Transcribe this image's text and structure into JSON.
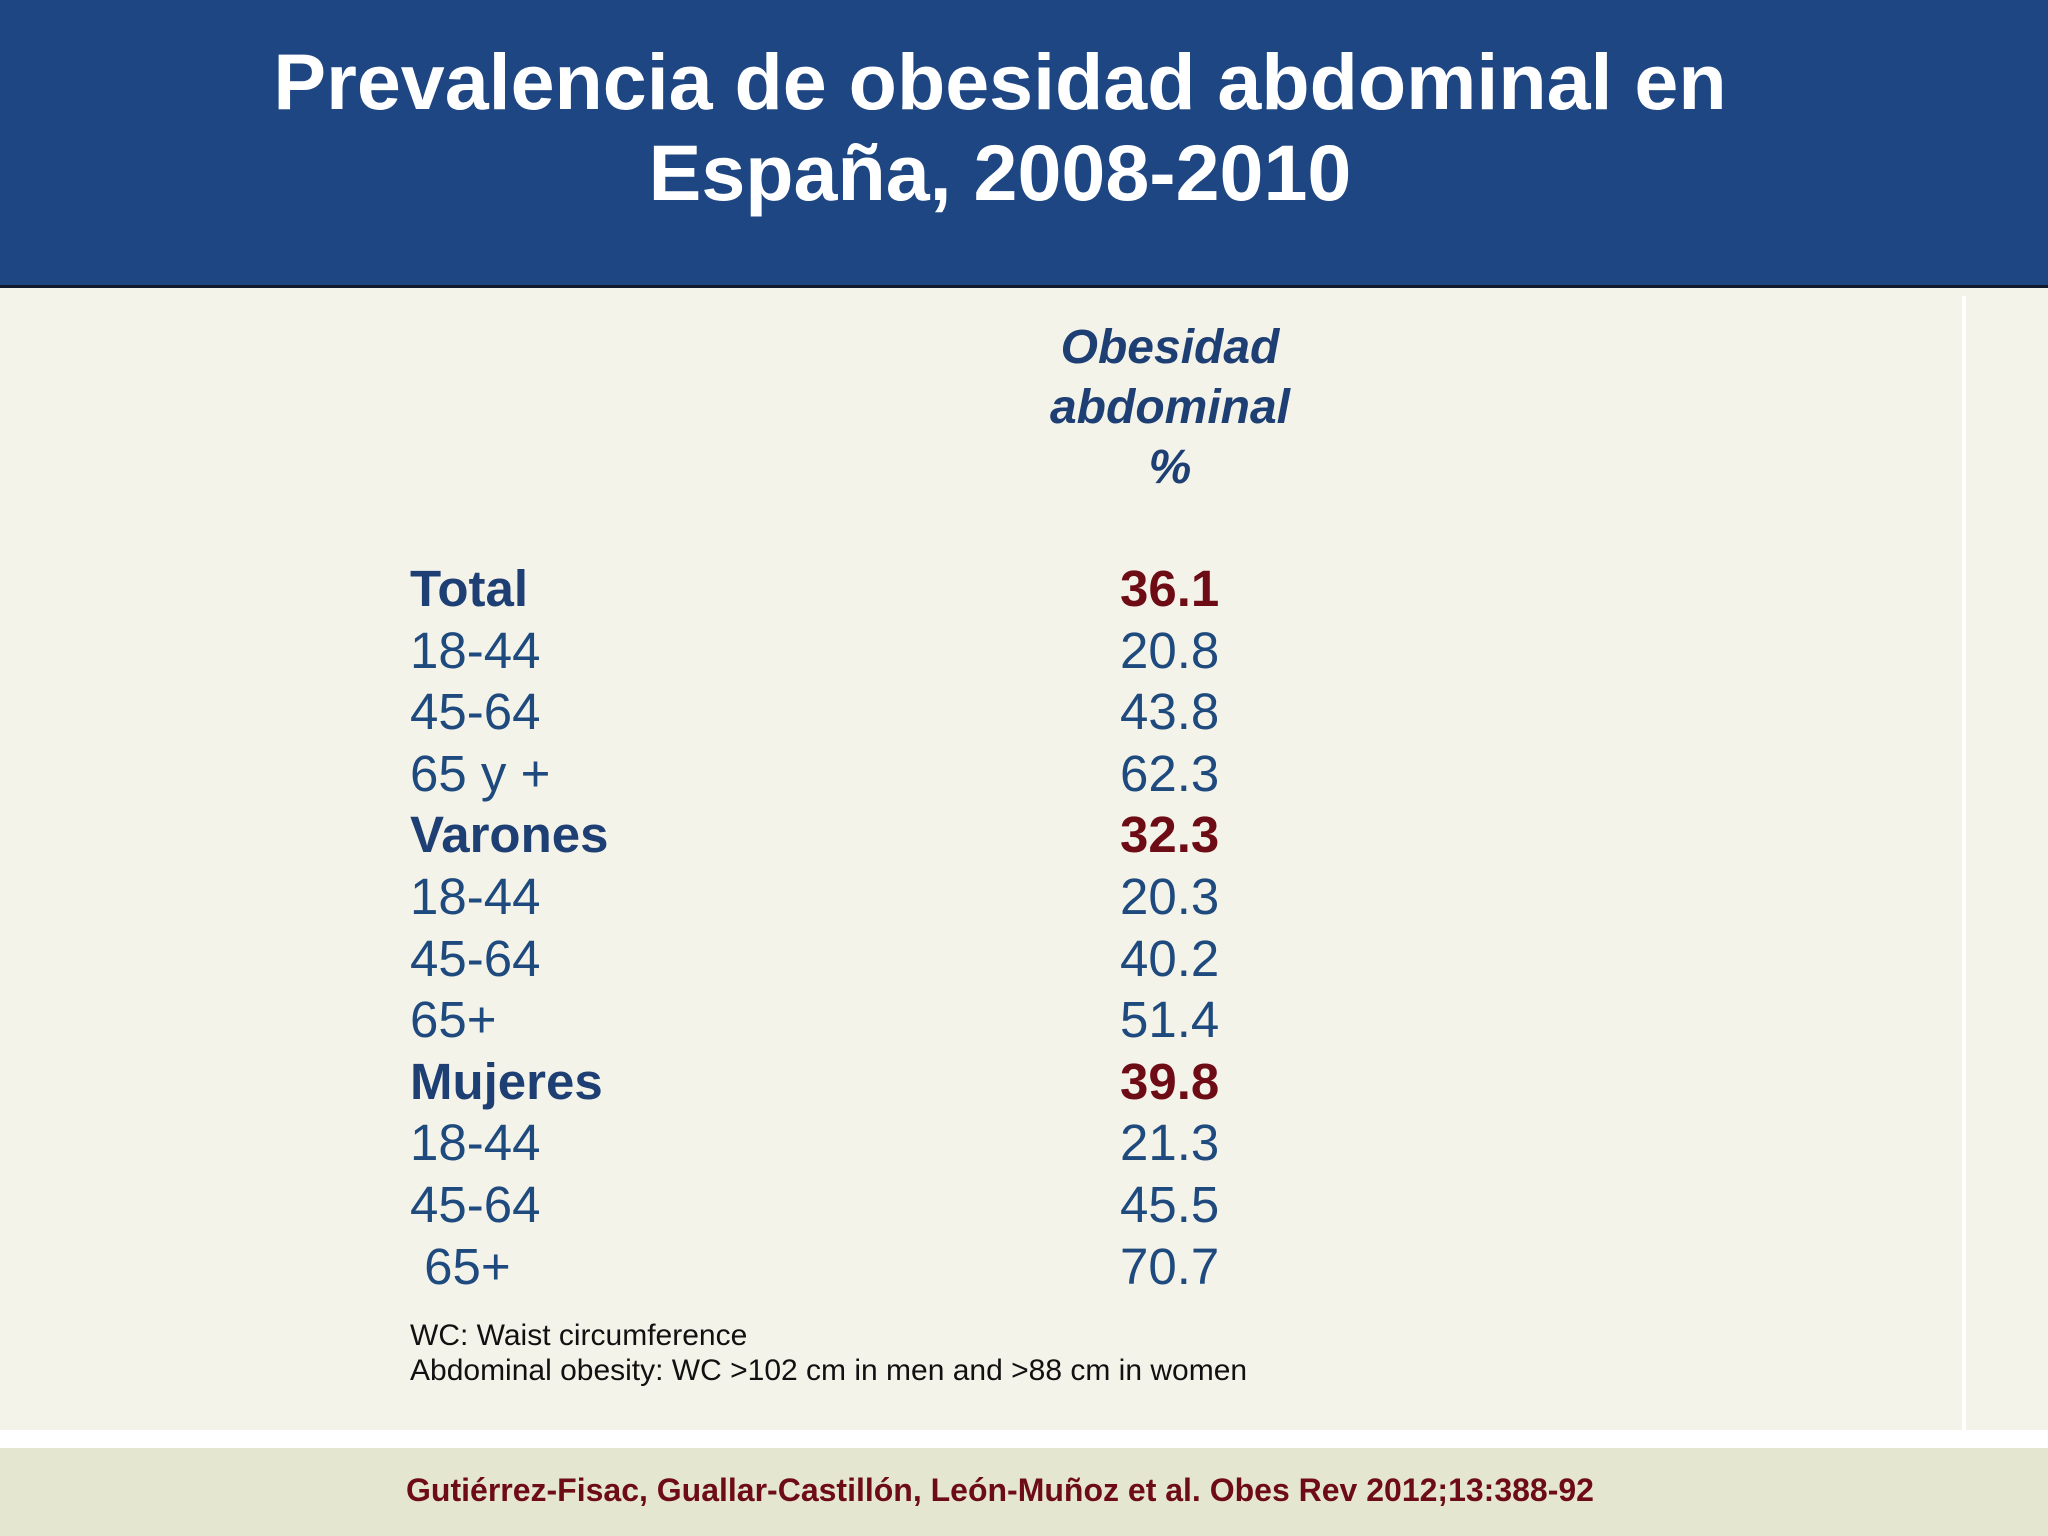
{
  "slide": {
    "title_line1": "Prevalencia de obesidad abdominal en",
    "title_line2": "España, 2008-2010"
  },
  "table": {
    "header_line1": "Obesidad",
    "header_line2": "abdominal",
    "header_line3": "%",
    "rows": [
      {
        "label": "Total",
        "value": "36.1"
      },
      {
        "label": "18-44",
        "value": "20.8"
      },
      {
        "label": "45-64",
        "value": "43.8"
      },
      {
        "label": "65 y +",
        "value": "62.3"
      },
      {
        "label": "Varones",
        "value": "32.3"
      },
      {
        "label": "18-44",
        "value": "20.3"
      },
      {
        "label": "45-64",
        "value": "40.2"
      },
      {
        "label": "65+",
        "value": "51.4"
      },
      {
        "label": "Mujeres",
        "value": "39.8"
      },
      {
        "label": "18-44",
        "value": "21.3"
      },
      {
        "label": "45-64",
        "value": "45.5"
      },
      {
        "label": " 65+",
        "value": "70.7"
      }
    ]
  },
  "notes": {
    "line1": "WC: Waist circumference",
    "line2": "Abdominal obesity: WC >102 cm in men and >88 cm in women"
  },
  "footer": {
    "citation": "Gutiérrez-Fisac, Guallar-Castillón, León-Muñoz et al. Obes Rev 2012;13:388-92"
  },
  "colors": {
    "header_bg": "#1e4682",
    "body_bg": "#f4f3ea",
    "footer_bg": "#e4e6cf",
    "label_blue": "#1e4a7e",
    "highlight_red": "#6e0c16"
  }
}
